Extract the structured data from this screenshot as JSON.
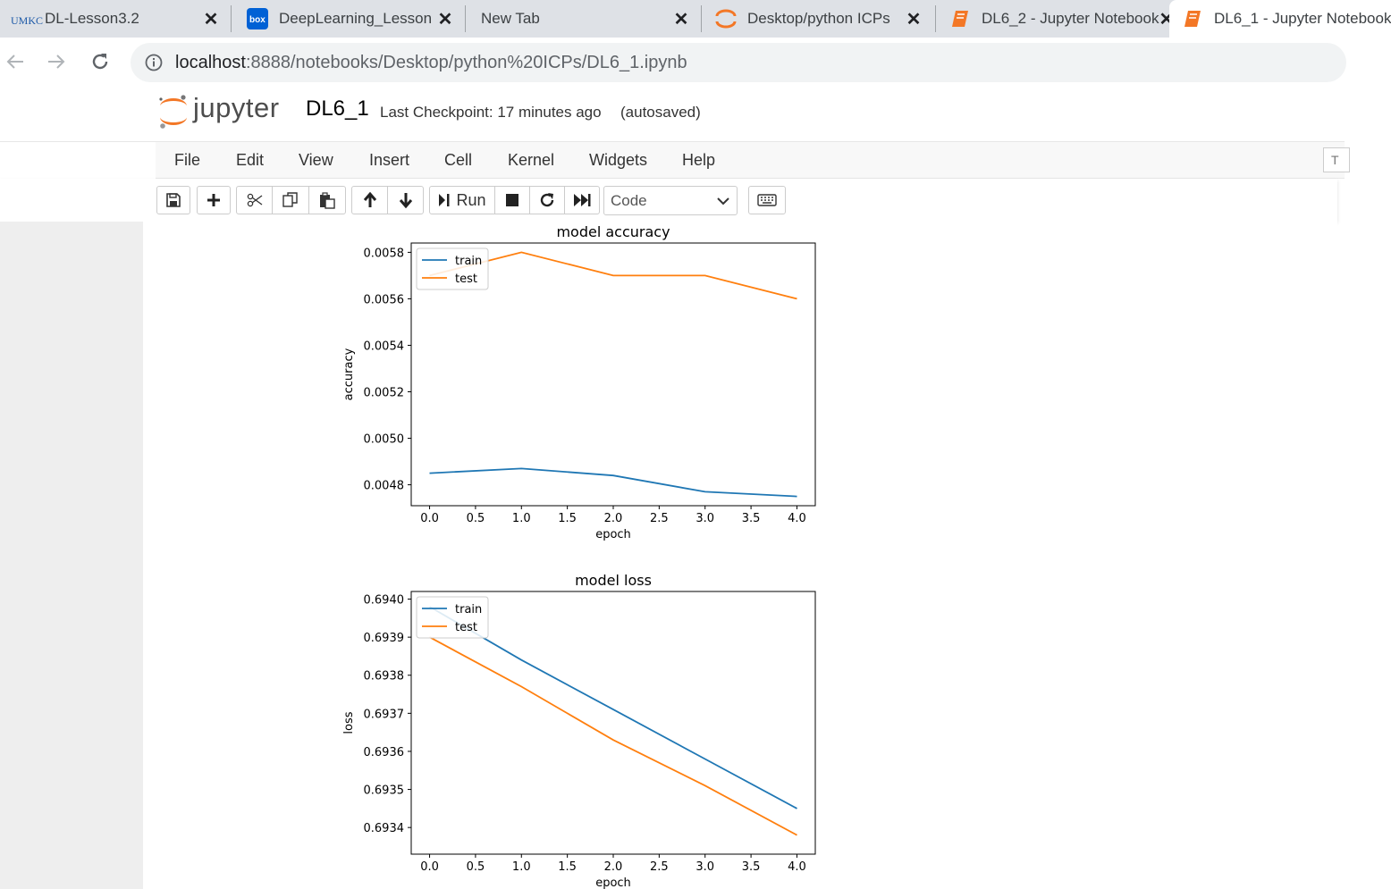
{
  "browser": {
    "tabs": [
      {
        "title": "DL-Lesson3.2",
        "icon": "umkc-icon",
        "active": false
      },
      {
        "title": "DeepLearning_Lesson",
        "icon": "box-icon",
        "active": false
      },
      {
        "title": "New Tab",
        "icon": "",
        "active": false
      },
      {
        "title": "Desktop/python ICPs",
        "icon": "jupyter-icon",
        "active": false
      },
      {
        "title": "DL6_2 - Jupyter Notebook",
        "icon": "notebook-icon",
        "active": false
      },
      {
        "title": "DL6_1 - Jupyter Notebook",
        "icon": "notebook-icon",
        "active": true
      }
    ],
    "umkc_logo_text": "UMKC",
    "box_logo_text": "box",
    "url_host": "localhost",
    "url_rest": ":8888/notebooks/Desktop/python%20ICPs/DL6_1.ipynb"
  },
  "jupyter": {
    "logo_text": "jupyter",
    "notebook_name": "DL6_1",
    "checkpoint": "Last Checkpoint: 17 minutes ago",
    "autosave": "(autosaved)",
    "menu": [
      "File",
      "Edit",
      "View",
      "Insert",
      "Cell",
      "Kernel",
      "Widgets",
      "Help"
    ],
    "menu_right": "T",
    "toolbar": {
      "run_label": "Run",
      "cell_type": "Code",
      "icons": [
        "save-icon",
        "plus-icon",
        "scissors-icon",
        "copy-icon",
        "paste-icon",
        "arrow-up-icon",
        "arrow-down-icon",
        "run-icon",
        "stop-icon",
        "restart-icon",
        "fast-forward-icon",
        "keyboard-icon"
      ]
    }
  },
  "chart_data": [
    {
      "type": "line",
      "title": "model accuracy",
      "xlabel": "epoch",
      "ylabel": "accuracy",
      "x": [
        0,
        1,
        2,
        3,
        4
      ],
      "xticks": [
        "0.0",
        "0.5",
        "1.0",
        "1.5",
        "2.0",
        "2.5",
        "3.0",
        "3.5",
        "4.0"
      ],
      "yticks": [
        "0.0048",
        "0.0050",
        "0.0052",
        "0.0054",
        "0.0056",
        "0.0058"
      ],
      "ylim": [
        0.00471,
        0.00584
      ],
      "legend_position": "upper-left",
      "series": [
        {
          "name": "train",
          "color": "#1f77b4",
          "values": [
            0.00485,
            0.00487,
            0.00484,
            0.00477,
            0.00475
          ]
        },
        {
          "name": "test",
          "color": "#ff7f0e",
          "values": [
            0.0057,
            0.0058,
            0.0057,
            0.0057,
            0.0056
          ]
        }
      ]
    },
    {
      "type": "line",
      "title": "model loss",
      "xlabel": "epoch",
      "ylabel": "loss",
      "x": [
        0,
        1,
        2,
        3,
        4
      ],
      "xticks": [
        "0.0",
        "0.5",
        "1.0",
        "1.5",
        "2.0",
        "2.5",
        "3.0",
        "3.5",
        "4.0"
      ],
      "yticks": [
        "0.6934",
        "0.6935",
        "0.6936",
        "0.6937",
        "0.6938",
        "0.6939",
        "0.6940"
      ],
      "ylim": [
        0.69333,
        0.69402
      ],
      "legend_position": "upper-left",
      "series": [
        {
          "name": "train",
          "color": "#1f77b4",
          "values": [
            0.69398,
            0.69384,
            0.69371,
            0.69358,
            0.69345
          ]
        },
        {
          "name": "test",
          "color": "#ff7f0e",
          "values": [
            0.6939,
            0.69377,
            0.69363,
            0.69351,
            0.69338
          ]
        }
      ]
    }
  ]
}
